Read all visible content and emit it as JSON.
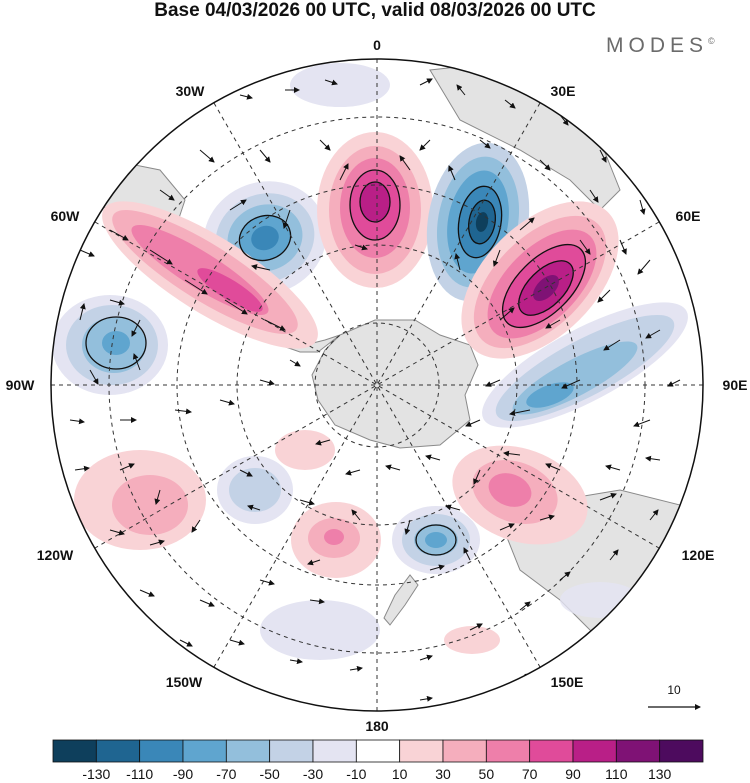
{
  "title": "Base 04/03/2026 00 UTC, valid 08/03/2026 00 UTC",
  "brand": {
    "name": "MODES",
    "mark": "©"
  },
  "map": {
    "projection": "south polar stereographic",
    "longitude_labels": {
      "top": "0",
      "upper_left": "30W",
      "upper_right": "30E",
      "left_upper": "60W",
      "right_upper": "60E",
      "left": "90W",
      "right": "90E",
      "left_lower": "120W",
      "right_lower": "120E",
      "lower_left": "150W",
      "lower_right": "150E",
      "bottom": "180"
    },
    "reference_vector": "10"
  },
  "colorbar": {
    "labels": [
      "-130",
      "-110",
      "-90",
      "-70",
      "-50",
      "-30",
      "-10",
      "10",
      "30",
      "50",
      "70",
      "90",
      "110",
      "130"
    ],
    "colors": [
      "#0e3f5c",
      "#1f6591",
      "#3a87b8",
      "#5fa5cf",
      "#93bfdc",
      "#c3d2e6",
      "#e4e4f2",
      "#ffffff",
      "#f9d3d6",
      "#f5aebd",
      "#ee7faa",
      "#e04b9a",
      "#b91f87",
      "#7f1275",
      "#4d0b5e"
    ]
  },
  "colors": {
    "land": "#e3e3e3",
    "coast": "#8a8a8a",
    "grid": "#333333",
    "arrow": "#111111"
  }
}
